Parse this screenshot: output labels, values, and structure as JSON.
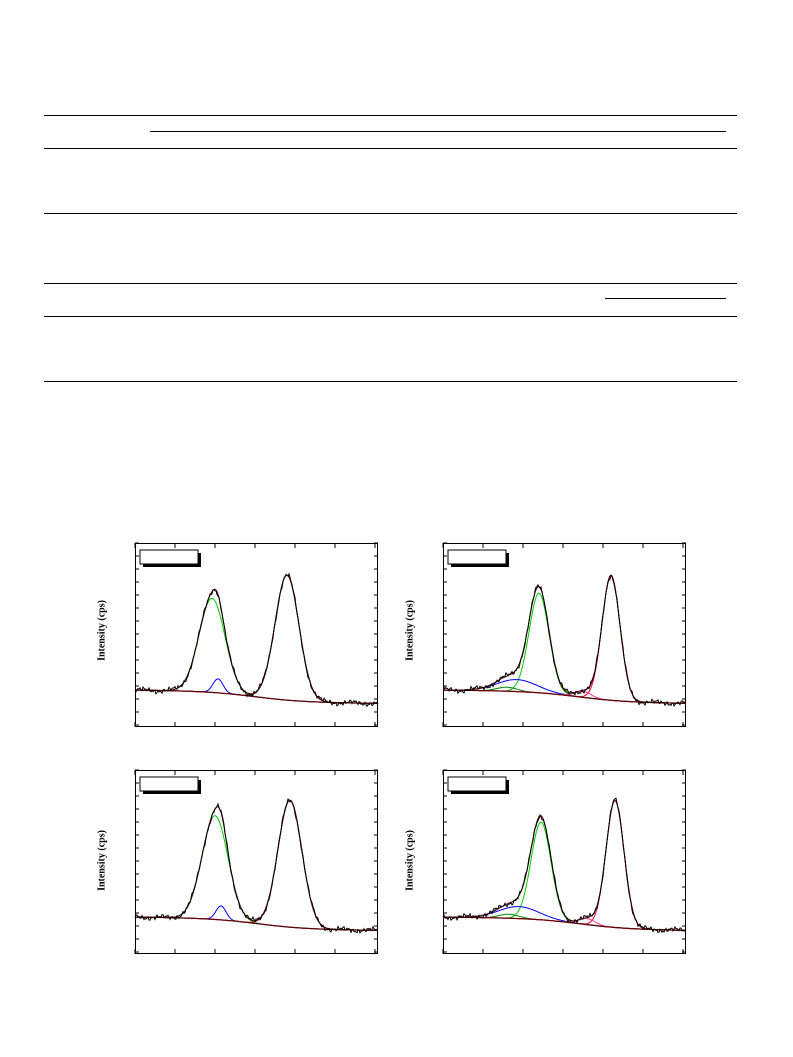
{
  "figure": {
    "panels": [
      {
        "ylabel": "Intensity (cps)"
      },
      {
        "ylabel": "Intensity (cps)"
      },
      {
        "ylabel": "Intensity (cps)"
      },
      {
        "ylabel": "Intensity (cps)"
      }
    ]
  }
}
